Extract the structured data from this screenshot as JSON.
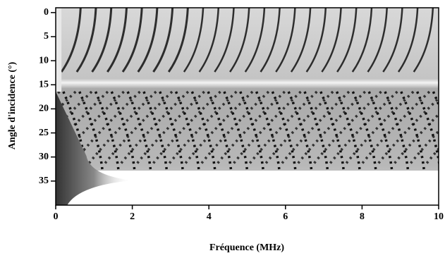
{
  "chart_data": {
    "type": "heatmap",
    "xlabel": "Fréquence (MHz)",
    "ylabel": "Angle d'incidence (°)",
    "xlim": [
      0,
      10
    ],
    "xticks": [
      0,
      2,
      4,
      6,
      8,
      10
    ],
    "ylim": [
      -1,
      40
    ],
    "yticks": [
      0,
      5,
      10,
      15,
      20,
      25,
      30,
      35
    ],
    "y_inverted": true
  }
}
